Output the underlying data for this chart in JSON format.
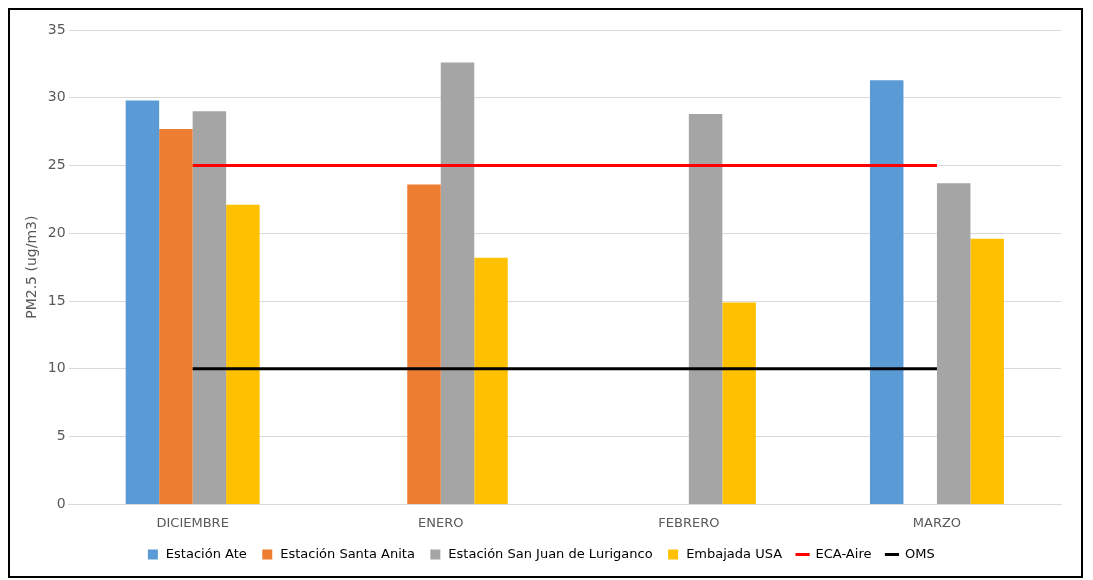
{
  "chart_data": {
    "type": "bar",
    "ylabel": "PM2.5 (ug/m3)",
    "categories": [
      "DICIEMBRE",
      "ENERO",
      "FEBRERO",
      "MARZO"
    ],
    "series": [
      {
        "name": "Estación Ate",
        "color": "#5b9bd5",
        "values": [
          29.8,
          null,
          null,
          31.3
        ]
      },
      {
        "name": "Estación Santa Anita",
        "color": "#ed7d31",
        "values": [
          27.7,
          23.6,
          null,
          null
        ]
      },
      {
        "name": "Estación San Juan de Luriganco",
        "color": "#a5a5a5",
        "values": [
          29.0,
          32.6,
          28.8,
          23.7
        ]
      },
      {
        "name": "Embajada USA",
        "color": "#ffc000",
        "values": [
          22.1,
          18.2,
          14.9,
          19.6
        ]
      },
      {
        "name": "ECA-Aire",
        "type": "line",
        "color": "#ff0000",
        "values": [
          25,
          25,
          25,
          25
        ]
      },
      {
        "name": "OMS",
        "type": "line",
        "color": "#000000",
        "values": [
          10,
          10,
          10,
          10
        ]
      }
    ],
    "ylim": [
      0,
      35
    ],
    "yticks": [
      0,
      5,
      10,
      15,
      20,
      25,
      30,
      35
    ],
    "grid": "y",
    "legend": "bottom",
    "marker": "none",
    "line_style": "solid"
  }
}
